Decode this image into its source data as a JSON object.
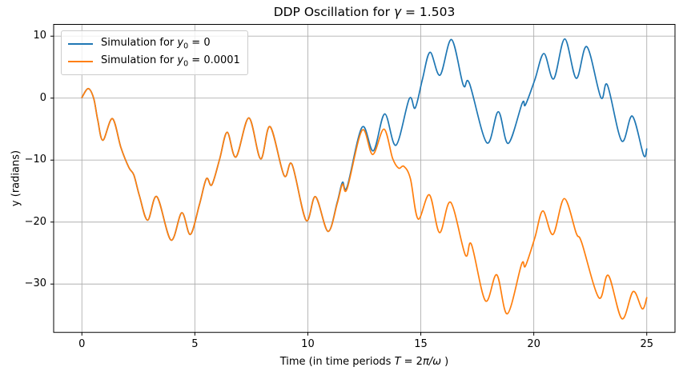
{
  "figure_title": {
    "prefix": "DDP Oscillation for ",
    "gamma": "γ",
    "suffix": " = 1.503"
  },
  "labels": {
    "ylabel": "y (radians)",
    "xlabel": {
      "prefix": "Time (in time periods ",
      "T": "T",
      "mid": " = 2",
      "piw": "π/ω",
      "suffix": " )"
    }
  },
  "legend": {
    "items": [
      {
        "prefix": "Simulation for ",
        "var": "y",
        "sub": "0",
        "eq": " = ",
        "value": "0",
        "color": "#1f77b4"
      },
      {
        "prefix": "Simulation for ",
        "var": "y",
        "sub": "0",
        "eq": " = ",
        "value": "0.0001",
        "color": "#ff7f0e"
      }
    ]
  },
  "colors": {
    "series_blue": "#1f77b4",
    "series_orange": "#ff7f0e",
    "grid": "#b0b0b0",
    "spine": "#000000",
    "background": "#ffffff",
    "legend_border": "#cccccc"
  },
  "chart_data": {
    "type": "line",
    "title": "DDP Oscillation for γ = 1.503",
    "xlabel": "Time (in time periods T = 2π/ω )",
    "ylabel": "y (radians)",
    "xlim": [
      -1.25,
      26.25
    ],
    "ylim": [
      -37.8,
      11.9
    ],
    "xticks": [
      0,
      5,
      10,
      15,
      20,
      25
    ],
    "xtick_labels": [
      "0",
      "5",
      "10",
      "15",
      "20",
      "25"
    ],
    "yticks": [
      10,
      0,
      -10,
      -20,
      -30
    ],
    "ytick_labels": [
      "10",
      "0",
      "−10",
      "−20",
      "−30"
    ],
    "grid": true,
    "legend_position": "upper left",
    "series": [
      {
        "name": "Simulation for y₀ = 0",
        "color": "#1f77b4",
        "points": [
          [
            0,
            0.1
          ],
          [
            0.28,
            1.55
          ],
          [
            0.52,
            0
          ],
          [
            0.7,
            -3.5
          ],
          [
            0.93,
            -6.8
          ],
          [
            1.35,
            -3.3
          ],
          [
            1.73,
            -8
          ],
          [
            2.08,
            -11.2
          ],
          [
            2.3,
            -12.4
          ],
          [
            2.55,
            -15.8
          ],
          [
            2.91,
            -19.7
          ],
          [
            3.32,
            -15.9
          ],
          [
            3.94,
            -22.9
          ],
          [
            4.42,
            -18.5
          ],
          [
            4.8,
            -22
          ],
          [
            5.2,
            -17.2
          ],
          [
            5.51,
            -13
          ],
          [
            5.75,
            -14
          ],
          [
            6.1,
            -9.8
          ],
          [
            6.43,
            -5.5
          ],
          [
            6.82,
            -9.5
          ],
          [
            7.39,
            -3.2
          ],
          [
            7.91,
            -9.8
          ],
          [
            8.33,
            -4.6
          ],
          [
            8.95,
            -12.5
          ],
          [
            9.3,
            -10.7
          ],
          [
            9.92,
            -19.7
          ],
          [
            10.34,
            -15.9
          ],
          [
            10.89,
            -21.5
          ],
          [
            11.3,
            -16.8
          ],
          [
            11.53,
            -13.6
          ],
          [
            11.74,
            -14.3
          ],
          [
            12.4,
            -4.7
          ],
          [
            12.9,
            -8.5
          ],
          [
            13.4,
            -2.55
          ],
          [
            13.9,
            -7.6
          ],
          [
            14.49,
            -0.1
          ],
          [
            14.75,
            -1.6
          ],
          [
            15.07,
            3
          ],
          [
            15.41,
            7.4
          ],
          [
            15.85,
            3.7
          ],
          [
            16.36,
            9.45
          ],
          [
            16.88,
            2.1
          ],
          [
            17.15,
            2.4
          ],
          [
            17.92,
            -7.2
          ],
          [
            18.43,
            -2.2
          ],
          [
            18.87,
            -7.3
          ],
          [
            19.49,
            -0.8
          ],
          [
            19.63,
            -1.1
          ],
          [
            20.05,
            3
          ],
          [
            20.45,
            7.2
          ],
          [
            20.88,
            3.1
          ],
          [
            21.37,
            9.55
          ],
          [
            21.88,
            3.2
          ],
          [
            22.35,
            8.3
          ],
          [
            22.97,
            0.1
          ],
          [
            23.26,
            2.1
          ],
          [
            23.89,
            -6.9
          ],
          [
            24.36,
            -2.9
          ],
          [
            24.86,
            -9.2
          ],
          [
            25,
            -8.2
          ]
        ]
      },
      {
        "name": "Simulation for y₀ = 0.0001",
        "color": "#ff7f0e",
        "points": [
          [
            0,
            0.1
          ],
          [
            0.28,
            1.55
          ],
          [
            0.52,
            0
          ],
          [
            0.7,
            -3.5
          ],
          [
            0.93,
            -6.8
          ],
          [
            1.35,
            -3.3
          ],
          [
            1.73,
            -8
          ],
          [
            2.08,
            -11.2
          ],
          [
            2.3,
            -12.4
          ],
          [
            2.55,
            -15.8
          ],
          [
            2.91,
            -19.7
          ],
          [
            3.32,
            -15.9
          ],
          [
            3.94,
            -22.9
          ],
          [
            4.42,
            -18.5
          ],
          [
            4.8,
            -22
          ],
          [
            5.2,
            -17.2
          ],
          [
            5.51,
            -13
          ],
          [
            5.75,
            -14
          ],
          [
            6.1,
            -9.8
          ],
          [
            6.43,
            -5.5
          ],
          [
            6.82,
            -9.5
          ],
          [
            7.39,
            -3.2
          ],
          [
            7.91,
            -9.8
          ],
          [
            8.33,
            -4.6
          ],
          [
            8.95,
            -12.5
          ],
          [
            9.3,
            -10.7
          ],
          [
            9.92,
            -19.7
          ],
          [
            10.34,
            -15.9
          ],
          [
            10.89,
            -21.5
          ],
          [
            11.3,
            -17
          ],
          [
            11.53,
            -13.9
          ],
          [
            11.74,
            -14.6
          ],
          [
            12.4,
            -5.2
          ],
          [
            12.87,
            -9.1
          ],
          [
            13.37,
            -5
          ],
          [
            13.75,
            -9.7
          ],
          [
            14.02,
            -11.3
          ],
          [
            14.25,
            -11
          ],
          [
            14.54,
            -13
          ],
          [
            14.88,
            -19.5
          ],
          [
            15.38,
            -15.6
          ],
          [
            15.83,
            -21.7
          ],
          [
            16.32,
            -16.8
          ],
          [
            16.97,
            -25.3
          ],
          [
            17.24,
            -23.6
          ],
          [
            17.86,
            -32.7
          ],
          [
            18.36,
            -28.5
          ],
          [
            18.83,
            -34.8
          ],
          [
            19.46,
            -26.8
          ],
          [
            19.63,
            -27.1
          ],
          [
            20.05,
            -22.5
          ],
          [
            20.4,
            -18.2
          ],
          [
            20.85,
            -22
          ],
          [
            21.35,
            -16.2
          ],
          [
            21.88,
            -21.8
          ],
          [
            22.12,
            -23.3
          ],
          [
            22.88,
            -32.2
          ],
          [
            23.3,
            -28.6
          ],
          [
            23.9,
            -35.6
          ],
          [
            24.4,
            -31.2
          ],
          [
            24.8,
            -34
          ],
          [
            25,
            -32.2
          ]
        ]
      }
    ]
  }
}
